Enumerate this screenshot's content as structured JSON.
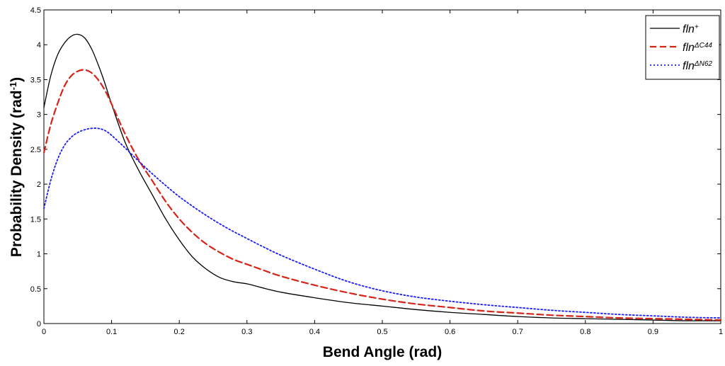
{
  "chart_data": {
    "type": "line",
    "title": "",
    "xlabel": "Bend Angle (rad)",
    "ylabel_main": "Probability Density (rad",
    "ylabel_sup": "-1",
    "ylabel_close": ")",
    "xlim": [
      0,
      1
    ],
    "ylim": [
      0,
      4.5
    ],
    "grid": false,
    "legend_position": "top-right",
    "x_ticks": [
      "0",
      "0.1",
      "0.2",
      "0.3",
      "0.4",
      "0.5",
      "0.6",
      "0.7",
      "0.8",
      "0.9",
      "1"
    ],
    "x_tick_values": [
      0,
      0.1,
      0.2,
      0.3,
      0.4,
      0.5,
      0.6,
      0.7,
      0.8,
      0.9,
      1.0
    ],
    "y_ticks": [
      "0",
      "0.5",
      "1",
      "1.5",
      "2",
      "2.5",
      "3",
      "3.5",
      "4",
      "4.5"
    ],
    "y_tick_values": [
      0,
      0.5,
      1,
      1.5,
      2,
      2.5,
      3,
      3.5,
      4,
      4.5
    ],
    "series": [
      {
        "name": "fln",
        "name_sup": "+",
        "color": "#000000",
        "style": "solid",
        "x": [
          0,
          0.01,
          0.02,
          0.03,
          0.04,
          0.05,
          0.06,
          0.07,
          0.08,
          0.09,
          0.1,
          0.12,
          0.14,
          0.16,
          0.18,
          0.2,
          0.22,
          0.24,
          0.26,
          0.28,
          0.3,
          0.32,
          0.35,
          0.4,
          0.45,
          0.5,
          0.55,
          0.6,
          0.65,
          0.7,
          0.75,
          0.8,
          0.85,
          0.9,
          0.95,
          1.0
        ],
        "y": [
          3.1,
          3.55,
          3.85,
          4.02,
          4.12,
          4.15,
          4.1,
          3.95,
          3.72,
          3.45,
          3.15,
          2.6,
          2.2,
          1.85,
          1.5,
          1.2,
          0.95,
          0.78,
          0.66,
          0.6,
          0.57,
          0.52,
          0.45,
          0.37,
          0.3,
          0.25,
          0.2,
          0.16,
          0.13,
          0.1,
          0.08,
          0.07,
          0.06,
          0.05,
          0.04,
          0.04
        ]
      },
      {
        "name": "fln",
        "name_sup": "ΔC44",
        "color": "#d62418",
        "style": "dashed",
        "x": [
          0,
          0.01,
          0.02,
          0.03,
          0.04,
          0.05,
          0.06,
          0.07,
          0.08,
          0.09,
          0.1,
          0.12,
          0.14,
          0.16,
          0.18,
          0.2,
          0.22,
          0.24,
          0.26,
          0.28,
          0.3,
          0.32,
          0.35,
          0.4,
          0.45,
          0.5,
          0.55,
          0.6,
          0.65,
          0.7,
          0.75,
          0.8,
          0.85,
          0.9,
          0.95,
          1.0
        ],
        "y": [
          2.45,
          2.85,
          3.15,
          3.4,
          3.55,
          3.62,
          3.64,
          3.6,
          3.5,
          3.35,
          3.15,
          2.72,
          2.35,
          2.05,
          1.75,
          1.5,
          1.3,
          1.14,
          1.02,
          0.92,
          0.85,
          0.78,
          0.68,
          0.55,
          0.44,
          0.35,
          0.28,
          0.23,
          0.18,
          0.15,
          0.12,
          0.1,
          0.08,
          0.07,
          0.06,
          0.05
        ]
      },
      {
        "name": "fln",
        "name_sup": "ΔN62",
        "color": "#1a1aff",
        "style": "dotted",
        "x": [
          0,
          0.01,
          0.02,
          0.03,
          0.04,
          0.05,
          0.06,
          0.07,
          0.08,
          0.09,
          0.1,
          0.12,
          0.14,
          0.16,
          0.18,
          0.2,
          0.22,
          0.24,
          0.26,
          0.28,
          0.3,
          0.32,
          0.35,
          0.4,
          0.45,
          0.5,
          0.55,
          0.6,
          0.65,
          0.7,
          0.75,
          0.8,
          0.85,
          0.9,
          0.95,
          1.0
        ],
        "y": [
          1.65,
          2.05,
          2.35,
          2.55,
          2.67,
          2.74,
          2.78,
          2.8,
          2.8,
          2.77,
          2.7,
          2.52,
          2.33,
          2.15,
          1.98,
          1.82,
          1.68,
          1.55,
          1.43,
          1.32,
          1.22,
          1.12,
          0.98,
          0.78,
          0.6,
          0.47,
          0.38,
          0.32,
          0.27,
          0.23,
          0.19,
          0.16,
          0.13,
          0.11,
          0.09,
          0.08
        ]
      }
    ]
  }
}
